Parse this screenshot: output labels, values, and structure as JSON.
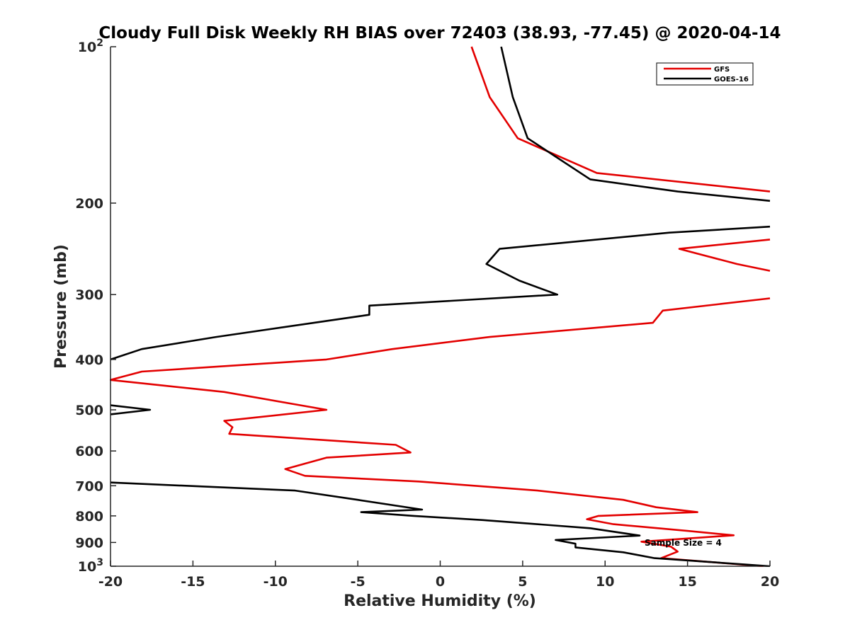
{
  "chart_data": {
    "type": "line",
    "title": "Cloudy Full Disk Weekly RH BIAS over 72403 (38.93, -77.45) @ 2020-04-14",
    "xlabel": "Relative Humidity (%)",
    "ylabel": "Pressure (mb)",
    "xlim": [
      -20,
      20
    ],
    "ylim": [
      100,
      1000
    ],
    "y_scale": "log",
    "y_reversed": true,
    "grid": false,
    "legend_position": "top-right",
    "x_ticks": [
      "-20",
      "-15",
      "-10",
      "-5",
      "0",
      "5",
      "10",
      "15",
      "20"
    ],
    "y_ticks": [
      {
        "value": 100,
        "base": "10",
        "exp": "2"
      },
      {
        "value": 200,
        "label": "200"
      },
      {
        "value": 300,
        "label": "300"
      },
      {
        "value": 400,
        "label": "400"
      },
      {
        "value": 500,
        "label": "500"
      },
      {
        "value": 600,
        "label": "600"
      },
      {
        "value": 700,
        "label": "700"
      },
      {
        "value": 800,
        "label": "800"
      },
      {
        "value": 900,
        "label": "900"
      },
      {
        "value": 1000,
        "base": "10",
        "exp": "3"
      }
    ],
    "annotation": "Sample Size = 4",
    "series": [
      {
        "name": "GFS",
        "color": "#e30000",
        "points": [
          [
            1.9,
            100
          ],
          [
            3.0,
            125
          ],
          [
            4.7,
            150
          ],
          [
            9.5,
            175
          ],
          [
            20,
            190
          ],
          [
            null,
            null
          ],
          [
            20,
            235
          ],
          [
            14.5,
            245
          ],
          [
            18,
            262
          ],
          [
            20,
            270
          ],
          [
            null,
            null
          ],
          [
            20,
            305
          ],
          [
            13.5,
            322
          ],
          [
            12.9,
            340
          ],
          [
            3.0,
            362
          ],
          [
            -2.9,
            382
          ],
          [
            -6.9,
            400
          ],
          [
            -18.1,
            422
          ],
          [
            -20,
            438
          ],
          [
            -13.1,
            462
          ],
          [
            -6.9,
            500
          ],
          [
            -13.1,
            525
          ],
          [
            -12.6,
            540
          ],
          [
            -12.8,
            556
          ],
          [
            -2.7,
            584
          ],
          [
            -1.8,
            604
          ],
          [
            -6.9,
            618
          ],
          [
            -9.4,
            650
          ],
          [
            -8.2,
            670
          ],
          [
            -1.3,
            687
          ],
          [
            5.9,
            715
          ],
          [
            11.1,
            745
          ],
          [
            13.1,
            770
          ],
          [
            15.6,
            787
          ],
          [
            9.6,
            800
          ],
          [
            8.9,
            812
          ],
          [
            10.5,
            830
          ],
          [
            15.0,
            855
          ],
          [
            17.8,
            872
          ],
          [
            12.2,
            897
          ],
          [
            14.0,
            917
          ],
          [
            14.4,
            937
          ],
          [
            13.4,
            965
          ],
          [
            19.6,
            1000
          ]
        ]
      },
      {
        "name": "GOES-16",
        "color": "#000000",
        "points": [
          [
            3.7,
            100
          ],
          [
            4.4,
            125
          ],
          [
            5.3,
            150
          ],
          [
            9.1,
            180
          ],
          [
            14.4,
            190
          ],
          [
            20,
            198
          ],
          [
            null,
            null
          ],
          [
            20,
            222
          ],
          [
            13.9,
            228
          ],
          [
            3.6,
            245
          ],
          [
            2.8,
            262
          ],
          [
            4.8,
            282
          ],
          [
            7.1,
            300
          ],
          [
            -4.3,
            315
          ],
          [
            -4.3,
            328
          ],
          [
            -13.6,
            362
          ],
          [
            -18.1,
            382
          ],
          [
            -20,
            400
          ],
          [
            null,
            null
          ],
          [
            -20,
            490
          ],
          [
            -17.6,
            500
          ],
          [
            -20,
            510
          ],
          [
            null,
            null
          ],
          [
            -20,
            690
          ],
          [
            -8.8,
            715
          ],
          [
            -5.0,
            745
          ],
          [
            -1.1,
            778
          ],
          [
            -4.8,
            787
          ],
          [
            -1.6,
            800
          ],
          [
            2.6,
            815
          ],
          [
            9.1,
            845
          ],
          [
            12.1,
            873
          ],
          [
            7.0,
            890
          ],
          [
            8.2,
            905
          ],
          [
            8.2,
            920
          ],
          [
            11.1,
            940
          ],
          [
            13.0,
            965
          ],
          [
            20,
            1000
          ]
        ]
      }
    ]
  }
}
